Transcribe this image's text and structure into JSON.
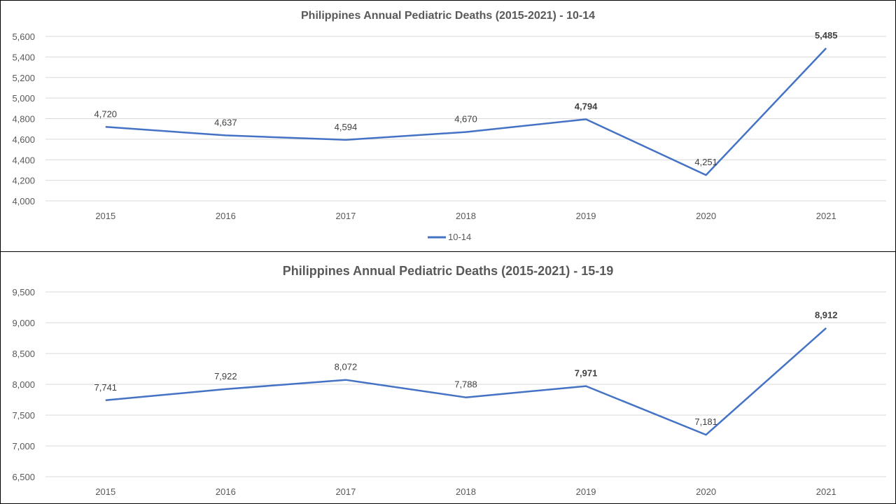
{
  "chart_data": [
    {
      "type": "line",
      "title": "Philippines Annual Pediatric Deaths (2015-2021) - 10-14",
      "categories": [
        "2015",
        "2016",
        "2017",
        "2018",
        "2019",
        "2020",
        "2021"
      ],
      "series": [
        {
          "name": "10-14",
          "values": [
            4720,
            4637,
            4594,
            4670,
            4794,
            4251,
            5485
          ],
          "color": "#4472c4"
        }
      ],
      "data_labels": [
        "4,720",
        "4,637",
        "4,594",
        "4,670",
        "4,794",
        "4,251",
        "5,485"
      ],
      "highlight": {
        "2019": "bold",
        "2021": "bold-red"
      },
      "highlight_color": "#c00000",
      "ylim": [
        4000,
        5600
      ],
      "yticks": [
        "4,000",
        "4,200",
        "4,400",
        "4,600",
        "4,800",
        "5,000",
        "5,200",
        "5,400",
        "5,600"
      ],
      "grid": true,
      "legend": {
        "position": "bottom",
        "label": "10-14"
      }
    },
    {
      "type": "line",
      "title": "Philippines  Annual  Pediatric  Deaths  (2015-2021) - 15-19",
      "categories": [
        "2015",
        "2016",
        "2017",
        "2018",
        "2019",
        "2020",
        "2021"
      ],
      "series": [
        {
          "values": [
            7741,
            7922,
            8072,
            7788,
            7971,
            7181,
            8912
          ],
          "color": "#4472c4"
        }
      ],
      "data_labels": [
        "7,741",
        "7,922",
        "8,072",
        "7,788",
        "7,971",
        "7,181",
        "8,912"
      ],
      "highlight": {
        "2019": "bold",
        "2021": "bold-red"
      },
      "highlight_color": "#c00000",
      "ylim": [
        6500,
        9500
      ],
      "yticks": [
        "6,500",
        "7,000",
        "7,500",
        "8,000",
        "8,500",
        "9,000",
        "9,500"
      ],
      "grid": true,
      "legend": null
    }
  ]
}
